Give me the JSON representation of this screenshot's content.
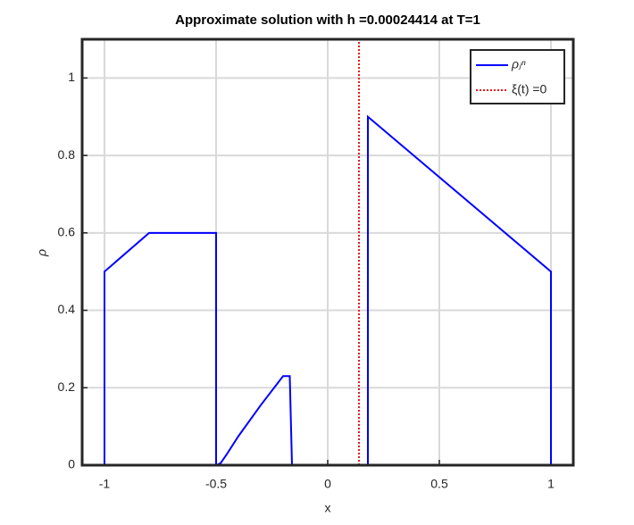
{
  "chart_data": {
    "type": "line",
    "title": "Approximate solution with h =0.00024414 at T=1",
    "x_label": "x",
    "y_label": "ρ",
    "xlim": [
      -1.1,
      1.1
    ],
    "ylim": [
      0,
      1.1
    ],
    "xticks": [
      -1,
      -0.5,
      0,
      0.5,
      1
    ],
    "yticks": [
      0,
      0.2,
      0.4,
      0.6,
      0.8,
      1
    ],
    "grid": true,
    "legend_position": "upper right",
    "series": [
      {
        "name": "ρⱼⁿ",
        "color": "#0000ff",
        "style": "solid",
        "x": [
          -1,
          -1,
          -0.8,
          -0.5,
          -0.5,
          -0.48,
          -0.45,
          -0.4,
          -0.3,
          -0.2,
          -0.17,
          -0.16,
          0.18,
          0.18,
          1,
          1
        ],
        "values": [
          0,
          0.5,
          0.6,
          0.6,
          0,
          0.005,
          0.03,
          0.075,
          0.155,
          0.23,
          0.23,
          0,
          0,
          0.9,
          0.5,
          0
        ]
      },
      {
        "name": "ξ(t) =0",
        "color": "#e41a1c",
        "style": "dotted",
        "x": [
          0.14,
          0.14
        ],
        "values": [
          0,
          1.1
        ]
      }
    ]
  }
}
